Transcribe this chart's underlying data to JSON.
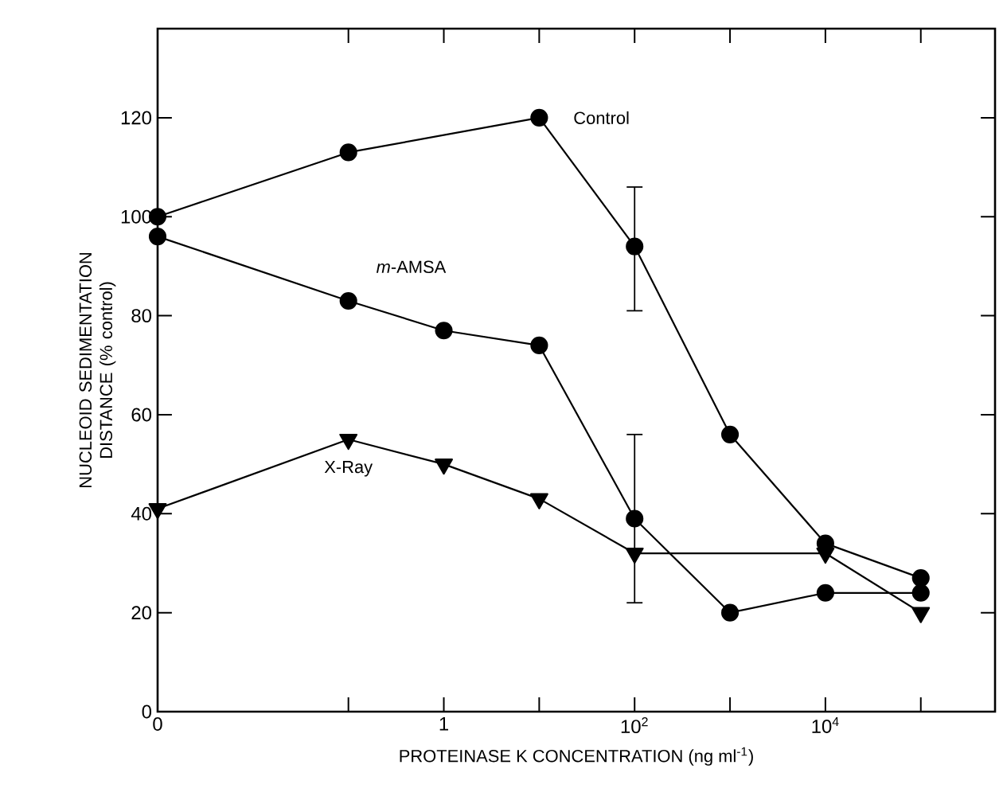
{
  "chart_data": {
    "type": "line",
    "log": "x",
    "xlabel": "PROTEINASE K CONCENTRATION (ng ml$^{-1}$)",
    "ylabel": "NUCLEOID SEDIMENTATION DISTANCE (% control)",
    "xlim": [
      0.001,
      600000
    ],
    "ylim": [
      0,
      138
    ],
    "xticks": [
      {
        "value": 0.001,
        "label": "0"
      },
      {
        "value": 0.1,
        "label": null
      },
      {
        "value": 1,
        "label": "1"
      },
      {
        "value": 10,
        "label": null
      },
      {
        "value": 100,
        "label": "10$^{2}$"
      },
      {
        "value": 1000,
        "label": null
      },
      {
        "value": 10000,
        "label": "10$^{4}$"
      },
      {
        "value": 100000,
        "label": null
      }
    ],
    "yticks": [
      0,
      20,
      40,
      60,
      80,
      100,
      120
    ],
    "grid": false,
    "line_style": "solid",
    "series": [
      {
        "name": "Control",
        "color": "#000000",
        "marker": "circle",
        "x": [
          0.001,
          0.1,
          10,
          100,
          1000,
          10000,
          100000
        ],
        "values": [
          100,
          113,
          120,
          94,
          56,
          34,
          27
        ],
        "errors": [
          null,
          null,
          null,
          [
            81,
            106
          ],
          null,
          null,
          null
        ]
      },
      {
        "name": "*m*-AMSA",
        "color": "#000000",
        "marker": "circle",
        "x": [
          0.001,
          0.1,
          1,
          10,
          100,
          1000,
          10000,
          100000
        ],
        "values": [
          96,
          83,
          77,
          74,
          39,
          20,
          24,
          24
        ],
        "errors": [
          null,
          null,
          null,
          null,
          [
            22,
            56
          ],
          null,
          null,
          null
        ]
      },
      {
        "name": "X-Ray",
        "color": "#000000",
        "marker": "triangle",
        "x": [
          0.001,
          0.1,
          1,
          10,
          100,
          10000,
          100000
        ],
        "values": [
          41,
          55,
          50,
          43,
          32,
          32,
          20
        ]
      }
    ]
  }
}
